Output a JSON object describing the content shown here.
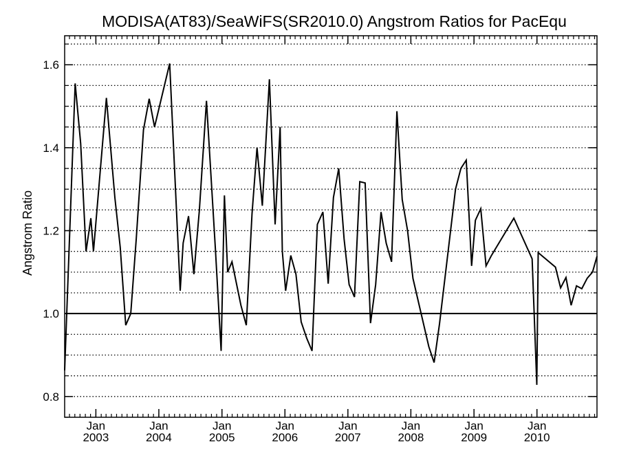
{
  "chart_data": {
    "type": "line",
    "title": "MODISA(AT83)/SeaWiFS(SR2010.0)  Angstrom Ratios for PacEqu",
    "xlabel": "",
    "ylabel": "Angstrom Ratio",
    "ylim": [
      0.75,
      1.67
    ],
    "xlim": [
      "2002-07-04",
      "2010-12-15"
    ],
    "yticks": [
      0.8,
      1.0,
      1.2,
      1.4,
      1.6
    ],
    "ytick_labels": [
      "0.8",
      "1.0",
      "1.2",
      "1.4",
      "1.6"
    ],
    "xticks": [
      {
        "month": "Jan",
        "year": "2003",
        "date": "2003-01-01"
      },
      {
        "month": "Jan",
        "year": "2004",
        "date": "2004-01-01"
      },
      {
        "month": "Jan",
        "year": "2005",
        "date": "2005-01-01"
      },
      {
        "month": "Jan",
        "year": "2006",
        "date": "2006-01-01"
      },
      {
        "month": "Jan",
        "year": "2007",
        "date": "2007-01-01"
      },
      {
        "month": "Jan",
        "year": "2008",
        "date": "2008-01-01"
      },
      {
        "month": "Jan",
        "year": "2009",
        "date": "2009-01-01"
      },
      {
        "month": "Jan",
        "year": "2010",
        "date": "2010-01-01"
      }
    ],
    "grid": "horizontal dotted",
    "reference_line": 1.0,
    "series": [
      {
        "x": [
          "2002-07-04",
          "2002-09-03",
          "2002-10-05",
          "2002-11-05",
          "2002-12-03",
          "2002-12-18",
          "2003-03-03",
          "2003-04-21",
          "2003-05-22",
          "2003-06-23",
          "2003-07-22",
          "2003-08-23",
          "2003-10-04",
          "2003-11-06",
          "2003-12-07",
          "2004-03-04",
          "2004-05-04",
          "2004-05-21",
          "2004-06-21",
          "2004-07-22",
          "2004-08-23",
          "2004-10-03",
          "2004-11-24",
          "2004-12-27",
          "2005-01-15",
          "2005-02-03",
          "2005-02-28",
          "2005-04-21",
          "2005-05-22",
          "2005-06-24",
          "2005-07-23",
          "2005-08-23",
          "2005-10-03",
          "2005-11-05",
          "2005-12-04",
          "2005-12-17",
          "2006-01-05",
          "2006-02-04",
          "2006-03-06",
          "2006-04-05",
          "2006-05-08",
          "2006-06-07",
          "2006-07-08",
          "2006-08-09",
          "2006-09-09",
          "2006-10-09",
          "2006-11-09",
          "2006-12-10",
          "2007-01-08",
          "2007-02-08",
          "2007-03-11",
          "2007-04-11",
          "2007-05-12",
          "2007-06-11",
          "2007-07-12",
          "2007-08-11",
          "2007-09-11",
          "2007-10-12",
          "2007-11-12",
          "2007-12-13",
          "2008-01-13",
          "2008-04-14",
          "2008-05-15",
          "2008-06-15",
          "2008-09-16",
          "2008-10-17",
          "2008-11-17",
          "2008-12-18",
          "2009-01-09",
          "2009-02-09",
          "2009-03-12",
          "2009-04-12",
          "2009-08-20",
          "2009-12-04",
          "2009-12-31",
          "2010-01-08",
          "2010-04-18",
          "2010-05-18",
          "2010-06-18",
          "2010-07-18",
          "2010-08-18",
          "2010-09-18",
          "2010-10-19",
          "2010-11-19",
          "2010-12-15"
        ],
        "y": [
          0.863,
          1.555,
          1.41,
          1.15,
          1.23,
          1.15,
          1.52,
          1.28,
          1.16,
          0.972,
          1.0,
          1.18,
          1.443,
          1.518,
          1.45,
          1.603,
          1.055,
          1.17,
          1.235,
          1.095,
          1.25,
          1.513,
          1.155,
          0.91,
          1.285,
          1.1,
          1.125,
          1.02,
          0.972,
          1.24,
          1.4,
          1.26,
          1.565,
          1.215,
          1.45,
          1.15,
          1.055,
          1.14,
          1.095,
          0.98,
          0.94,
          0.91,
          1.215,
          1.245,
          1.072,
          1.28,
          1.35,
          1.18,
          1.07,
          1.04,
          1.318,
          1.315,
          0.977,
          1.07,
          1.245,
          1.17,
          1.125,
          1.488,
          1.275,
          1.2,
          1.085,
          0.92,
          0.882,
          0.975,
          1.3,
          1.35,
          1.37,
          1.115,
          1.225,
          1.253,
          1.115,
          1.14,
          1.23,
          1.132,
          0.828,
          1.147,
          1.112,
          1.062,
          1.087,
          1.02,
          1.067,
          1.06,
          1.085,
          1.1,
          1.138
        ]
      }
    ]
  }
}
